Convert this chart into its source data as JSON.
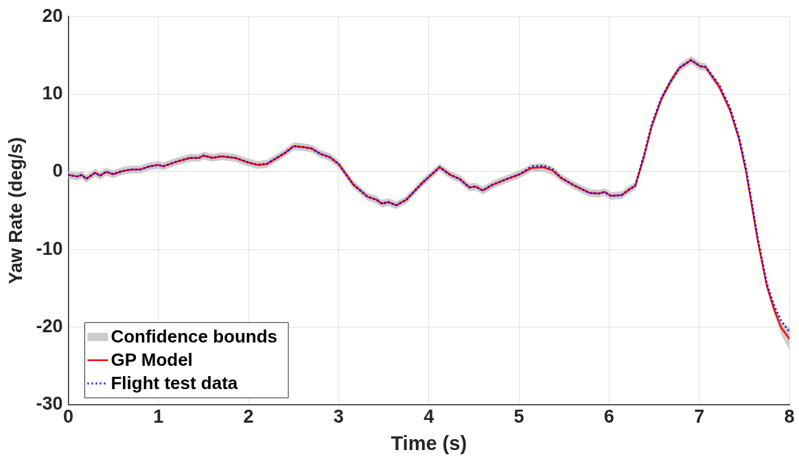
{
  "chart_data": {
    "type": "line",
    "xlabel": "Time (s)",
    "ylabel": "Yaw Rate (deg/s)",
    "xlim": [
      0,
      8
    ],
    "xticks": [
      0,
      1,
      2,
      3,
      4,
      5,
      6,
      7,
      8
    ],
    "ylim": [
      -30,
      20
    ],
    "yticks": [
      -30,
      -20,
      -10,
      0,
      10,
      20
    ],
    "grid": true,
    "legend": "bottom left",
    "marker": "none",
    "annotations": [
      "Confidence bounds"
    ],
    "x": [
      0,
      0.1,
      0.15,
      0.2,
      0.3,
      0.35,
      0.42,
      0.5,
      0.6,
      0.7,
      0.8,
      0.9,
      1.0,
      1.05,
      1.2,
      1.35,
      1.45,
      1.5,
      1.6,
      1.7,
      1.85,
      2.0,
      2.1,
      2.2,
      2.3,
      2.4,
      2.5,
      2.6,
      2.7,
      2.8,
      2.9,
      3.0,
      3.16,
      3.32,
      3.42,
      3.48,
      3.55,
      3.64,
      3.75,
      3.93,
      4.12,
      4.24,
      4.34,
      4.45,
      4.52,
      4.6,
      4.7,
      4.85,
      5.01,
      5.14,
      5.27,
      5.37,
      5.47,
      5.62,
      5.78,
      5.88,
      5.95,
      6.02,
      6.14,
      6.22,
      6.29,
      6.39,
      6.47,
      6.58,
      6.68,
      6.78,
      6.91,
      7.01,
      7.07,
      7.22,
      7.34,
      7.44,
      7.52,
      7.65,
      7.75,
      7.83,
      7.91,
      8.0
    ],
    "series": [
      {
        "name": "GP Model",
        "color": "#ff0000",
        "line_style": "solid",
        "values": [
          -0.4,
          -0.6,
          -0.4,
          -0.9,
          -0.1,
          -0.5,
          0.0,
          -0.3,
          0.1,
          0.3,
          0.3,
          0.7,
          0.9,
          0.7,
          1.3,
          1.8,
          1.8,
          2.1,
          1.8,
          2.0,
          1.8,
          1.2,
          0.9,
          1.0,
          1.7,
          2.4,
          3.3,
          3.2,
          3.0,
          2.3,
          1.9,
          1.0,
          -1.6,
          -3.2,
          -3.6,
          -4.1,
          -3.9,
          -4.3,
          -3.6,
          -1.4,
          0.6,
          -0.4,
          -0.9,
          -2.0,
          -1.9,
          -2.4,
          -1.7,
          -1.0,
          -0.3,
          0.5,
          0.6,
          0.2,
          -0.8,
          -1.8,
          -2.7,
          -2.8,
          -2.6,
          -3.1,
          -3.0,
          -2.3,
          -1.8,
          2.1,
          5.8,
          9.4,
          11.6,
          13.4,
          14.4,
          13.6,
          13.5,
          11.0,
          8.0,
          4.3,
          0.0,
          -8.9,
          -14.7,
          -17.7,
          -20.1,
          -21.5
        ],
        "lower": [
          -0.9,
          -1.1,
          -0.9,
          -1.4,
          -0.6,
          -1.0,
          -0.5,
          -0.8,
          -0.4,
          -0.2,
          -0.2,
          0.2,
          0.4,
          0.2,
          0.8,
          1.3,
          1.3,
          1.6,
          1.3,
          1.5,
          1.3,
          0.7,
          0.4,
          0.5,
          1.2,
          1.9,
          2.8,
          2.7,
          2.5,
          1.8,
          1.4,
          0.5,
          -2.1,
          -3.7,
          -4.1,
          -4.6,
          -4.4,
          -4.8,
          -4.1,
          -1.9,
          0.1,
          -0.9,
          -1.4,
          -2.5,
          -2.4,
          -2.9,
          -2.2,
          -1.5,
          -0.8,
          0.0,
          0.0,
          -0.4,
          -1.3,
          -2.3,
          -3.2,
          -3.3,
          -3.1,
          -3.6,
          -3.5,
          -2.8,
          -2.3,
          1.6,
          5.3,
          8.9,
          11.1,
          12.9,
          13.9,
          13.1,
          13.0,
          10.5,
          7.5,
          3.8,
          -0.5,
          -9.4,
          -15.2,
          -18.4,
          -21.0,
          -22.9
        ],
        "upper": [
          0.1,
          -0.1,
          0.1,
          -0.4,
          0.4,
          0.0,
          0.5,
          0.2,
          0.6,
          0.8,
          0.8,
          1.2,
          1.4,
          1.2,
          1.8,
          2.3,
          2.3,
          2.6,
          2.3,
          2.5,
          2.3,
          1.7,
          1.4,
          1.5,
          2.2,
          2.9,
          3.8,
          3.7,
          3.5,
          2.8,
          2.4,
          1.5,
          -1.1,
          -2.7,
          -3.1,
          -3.6,
          -3.4,
          -3.8,
          -3.1,
          -0.9,
          1.1,
          0.1,
          -0.4,
          -1.5,
          -1.4,
          -1.9,
          -1.2,
          -0.5,
          0.2,
          1.0,
          1.1,
          0.7,
          -0.3,
          -1.3,
          -2.2,
          -2.3,
          -2.1,
          -2.6,
          -2.5,
          -1.8,
          -1.3,
          2.6,
          6.3,
          9.9,
          12.1,
          13.9,
          14.9,
          14.1,
          14.0,
          11.5,
          8.5,
          4.8,
          0.5,
          -8.4,
          -14.2,
          -17.0,
          -19.3,
          -20.1
        ]
      },
      {
        "name": "Flight test data",
        "color": "#0000ff",
        "line_style": "dotted",
        "values": [
          -0.4,
          -0.6,
          -0.4,
          -0.9,
          -0.1,
          -0.5,
          0.0,
          -0.3,
          0.1,
          0.3,
          0.3,
          0.7,
          0.9,
          0.7,
          1.3,
          1.8,
          1.8,
          2.1,
          1.8,
          2.0,
          1.8,
          1.2,
          0.9,
          1.0,
          1.7,
          2.4,
          3.3,
          3.2,
          3.0,
          2.3,
          1.9,
          1.0,
          -1.6,
          -3.2,
          -3.6,
          -4.1,
          -3.9,
          -4.3,
          -3.6,
          -1.4,
          0.6,
          -0.4,
          -0.9,
          -2.0,
          -1.9,
          -2.4,
          -1.7,
          -1.0,
          -0.3,
          0.7,
          0.8,
          0.4,
          -0.8,
          -1.8,
          -2.7,
          -2.8,
          -2.6,
          -3.1,
          -3.0,
          -2.3,
          -1.8,
          2.3,
          6.0,
          9.5,
          11.6,
          13.4,
          14.4,
          13.6,
          13.5,
          11.2,
          8.3,
          4.6,
          0.4,
          -8.6,
          -14.4,
          -17.2,
          -19.2,
          -20.6
        ]
      }
    ]
  }
}
